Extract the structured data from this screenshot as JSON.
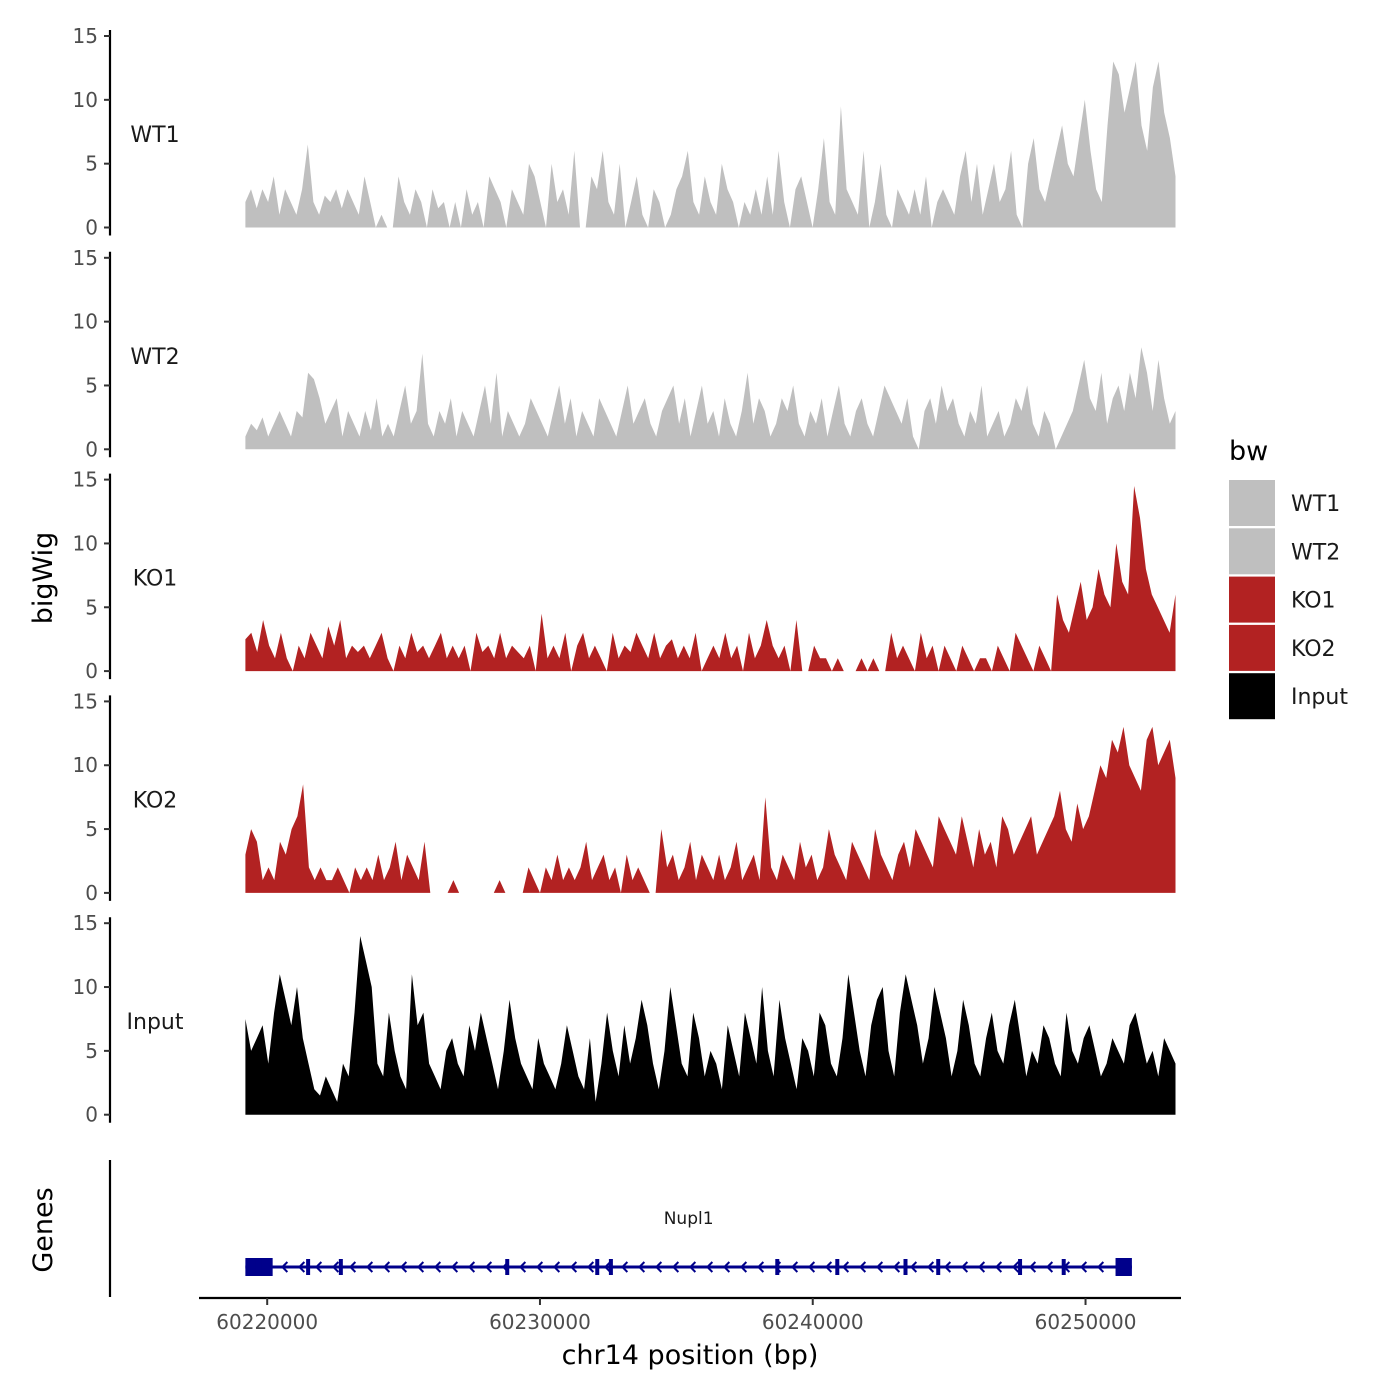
{
  "chart_data": {
    "type": "area",
    "ylabel": "bigWig",
    "genes_label": "Genes",
    "xlabel": "chr14 position (bp)",
    "xlim": [
      60217500,
      60253500
    ],
    "data_xrange": [
      60219200,
      60253300
    ],
    "ylim": [
      0,
      15
    ],
    "yticks": [
      "0",
      "5",
      "10",
      "15"
    ],
    "xticks": [
      {
        "value": 60220000,
        "label": "60220000"
      },
      {
        "value": 60230000,
        "label": "60230000"
      },
      {
        "value": 60240000,
        "label": "60240000"
      },
      {
        "value": 60250000,
        "label": "60250000"
      }
    ],
    "legend": {
      "title": "bw",
      "entries": [
        {
          "label": "WT1",
          "color": "#bfbfbf"
        },
        {
          "label": "WT2",
          "color": "#bfbfbf"
        },
        {
          "label": "KO1",
          "color": "#b22222"
        },
        {
          "label": "KO2",
          "color": "#b22222"
        },
        {
          "label": "Input",
          "color": "#000000"
        }
      ]
    },
    "series": [
      {
        "name": "WT1",
        "color": "#bfbfbf",
        "values": [
          2,
          3,
          1.5,
          3,
          2,
          4,
          1,
          3,
          2,
          1,
          3,
          6.5,
          2,
          1,
          2.5,
          2,
          3,
          1.5,
          3,
          2,
          1,
          4,
          2,
          0,
          1,
          0,
          0,
          4,
          2,
          1,
          3,
          2,
          0,
          3,
          1.5,
          2,
          0,
          2,
          0,
          3,
          1,
          2,
          0,
          4,
          3,
          2,
          0,
          3,
          2,
          1,
          5,
          4,
          2,
          0,
          5,
          2,
          3,
          1,
          6,
          0,
          0,
          4,
          3,
          6,
          2,
          1,
          5,
          0,
          2,
          4,
          1,
          0,
          3,
          2,
          0,
          1,
          3,
          4,
          6,
          2,
          1,
          4,
          2,
          1,
          5,
          3,
          2,
          0,
          2,
          1,
          3,
          1,
          4,
          1,
          6,
          2,
          0,
          3,
          4,
          2,
          0,
          3,
          7,
          2,
          1,
          9.5,
          3,
          2,
          1,
          6,
          0,
          2,
          5,
          1,
          0,
          3,
          2,
          1,
          3,
          1,
          4,
          0,
          2,
          3,
          2,
          1,
          4,
          6,
          2,
          5,
          1,
          3,
          5,
          2,
          3,
          6,
          1,
          0,
          5,
          7,
          3,
          2,
          4,
          6,
          8,
          5,
          4,
          7,
          10,
          6,
          3,
          2,
          8,
          13,
          12,
          9,
          11,
          13,
          8,
          6,
          11,
          13,
          9,
          7,
          4
        ]
      },
      {
        "name": "WT2",
        "color": "#bfbfbf",
        "values": [
          1,
          2,
          1.5,
          2.5,
          1,
          2,
          3,
          2,
          1,
          3,
          2.5,
          6,
          5.5,
          4,
          2,
          3,
          4,
          1,
          3,
          2,
          1,
          3,
          1.5,
          4,
          1,
          2,
          1,
          3,
          5,
          2,
          3,
          7.5,
          2,
          1,
          3,
          2,
          4,
          1,
          3,
          2,
          1,
          3,
          5,
          2,
          6,
          1,
          3,
          2,
          1,
          2,
          4,
          3,
          2,
          1,
          3,
          5,
          2,
          4,
          1,
          3,
          2,
          1,
          4,
          3,
          2,
          1,
          3,
          5,
          2,
          3,
          4,
          2,
          1,
          3,
          4,
          5,
          2,
          4,
          1,
          3,
          5,
          2,
          3,
          1,
          4,
          2,
          1,
          3,
          6,
          2,
          4,
          3,
          1,
          2,
          4,
          3,
          5,
          2,
          1,
          3,
          2,
          4,
          1,
          3,
          5,
          2,
          1,
          3,
          4,
          2,
          1,
          3,
          5,
          4,
          3,
          2,
          4,
          1,
          0,
          3,
          4,
          2,
          5,
          3,
          4,
          2,
          1,
          3,
          2,
          5,
          1,
          2,
          3,
          1,
          2,
          4,
          3,
          5,
          2,
          1,
          3,
          2,
          0,
          1,
          2,
          3,
          5,
          7,
          4,
          3,
          6,
          2,
          4,
          5,
          3,
          6,
          4,
          8,
          6,
          3,
          7,
          4,
          2,
          3
        ]
      },
      {
        "name": "KO1",
        "color": "#b22222",
        "values": [
          2.5,
          3,
          1.5,
          4,
          2,
          1,
          3,
          1,
          0,
          2,
          1,
          3,
          2,
          1,
          3.5,
          2,
          4,
          1,
          2,
          1.5,
          2,
          1,
          2,
          3,
          1,
          0,
          2,
          1,
          3,
          1.5,
          2,
          1,
          2,
          3,
          1,
          2,
          1,
          2,
          0,
          3,
          1.5,
          2,
          1,
          3,
          1,
          2,
          1.5,
          1,
          2,
          0,
          4.5,
          1,
          2,
          1,
          3,
          0,
          2,
          3,
          1,
          2,
          1,
          0,
          3,
          1,
          2,
          1.5,
          3,
          2,
          1,
          3,
          1,
          2,
          2.5,
          1,
          2,
          1,
          3,
          0,
          1,
          2,
          1,
          3,
          1,
          2,
          0,
          3,
          1,
          2,
          4,
          2,
          1,
          2,
          0,
          4,
          0,
          0,
          2,
          1,
          1,
          0,
          1,
          0,
          0,
          0,
          1,
          0,
          1,
          0,
          0,
          3,
          1,
          2,
          1,
          0,
          3,
          1,
          2,
          0,
          2,
          1,
          0,
          2,
          1,
          0,
          1,
          1,
          0,
          2,
          1,
          0,
          3,
          2,
          1,
          0,
          2,
          1,
          0,
          6,
          4,
          3,
          5,
          7,
          4,
          5,
          8,
          6,
          5,
          10,
          7,
          6,
          14.5,
          12,
          8,
          6,
          5,
          4,
          3,
          6
        ]
      },
      {
        "name": "KO2",
        "color": "#b22222",
        "values": [
          3,
          5,
          4,
          1,
          2,
          1,
          4,
          3,
          5,
          6,
          8.5,
          2,
          1,
          2,
          1,
          1,
          2,
          1,
          0,
          2,
          1,
          2,
          1,
          3,
          1,
          2,
          4,
          1,
          3,
          2,
          1,
          4,
          0,
          0,
          0,
          0,
          1,
          0,
          0,
          0,
          0,
          0,
          0,
          0,
          1,
          0,
          0,
          0,
          0,
          2,
          1,
          0,
          2,
          1,
          3,
          1,
          2,
          1,
          2,
          4,
          1,
          2,
          3,
          1,
          2,
          0,
          3,
          1,
          2,
          1,
          0,
          0,
          5,
          2,
          3,
          1,
          2,
          4,
          1,
          3,
          2,
          1,
          3,
          1,
          2,
          4,
          1,
          2,
          3,
          1,
          7.5,
          2,
          1,
          3,
          2,
          1,
          4,
          2,
          3,
          1,
          2,
          5,
          3,
          2,
          1,
          4,
          3,
          2,
          1,
          5,
          3,
          2,
          1,
          3,
          4,
          2,
          5,
          4,
          3,
          2,
          6,
          5,
          4,
          3,
          6,
          4,
          2,
          5,
          3,
          4,
          2,
          6,
          5,
          3,
          4,
          5,
          6,
          3,
          4,
          5,
          6,
          8,
          5,
          4,
          7,
          5,
          6,
          8,
          10,
          9,
          12,
          11,
          13,
          10,
          9,
          8,
          12,
          13,
          10,
          11,
          12,
          9
        ]
      },
      {
        "name": "Input",
        "color": "#000000",
        "values": [
          7.5,
          5,
          6,
          7,
          4,
          8,
          11,
          9,
          7,
          10,
          6,
          4,
          2,
          1.5,
          3,
          2,
          1,
          4,
          3,
          8,
          14,
          12,
          10,
          4,
          3,
          8,
          5,
          3,
          2,
          11,
          7,
          8,
          4,
          3,
          2,
          5,
          6,
          4,
          3,
          7,
          5,
          8,
          6,
          4,
          2,
          5,
          9,
          6,
          4,
          3,
          2,
          6,
          4,
          3,
          2,
          4,
          7,
          5,
          3,
          2,
          6,
          1,
          4,
          8,
          5,
          3,
          7,
          4,
          6,
          9,
          7,
          4,
          2,
          5,
          10,
          7,
          4,
          3,
          8,
          6,
          3,
          5,
          4,
          2,
          7,
          5,
          3,
          8,
          6,
          4,
          10,
          5,
          3,
          9,
          6,
          4,
          2,
          6,
          5,
          3,
          8,
          7,
          4,
          3,
          6,
          11,
          8,
          5,
          3,
          7,
          9,
          10,
          5,
          3,
          8,
          11,
          9,
          7,
          4,
          6,
          10,
          8,
          6,
          3,
          5,
          9,
          7,
          4,
          3,
          6,
          8,
          5,
          4,
          7,
          9,
          6,
          3,
          5,
          4,
          7,
          6,
          4,
          3,
          8,
          5,
          4,
          6,
          7,
          5,
          3,
          4,
          6,
          5,
          4,
          7,
          8,
          6,
          4,
          5,
          3,
          6,
          5,
          4
        ]
      }
    ],
    "gene": {
      "name": "Nupl1",
      "start": 60219200,
      "end": 60251700,
      "strand": "-",
      "color": "#00008b",
      "exons": [
        60219300,
        60219500,
        60219700,
        60221500,
        60222700,
        60228800,
        60232100,
        60232600,
        60238700,
        60240900,
        60243400,
        60244600,
        60247600,
        60249200,
        60251200,
        60251400
      ]
    }
  }
}
